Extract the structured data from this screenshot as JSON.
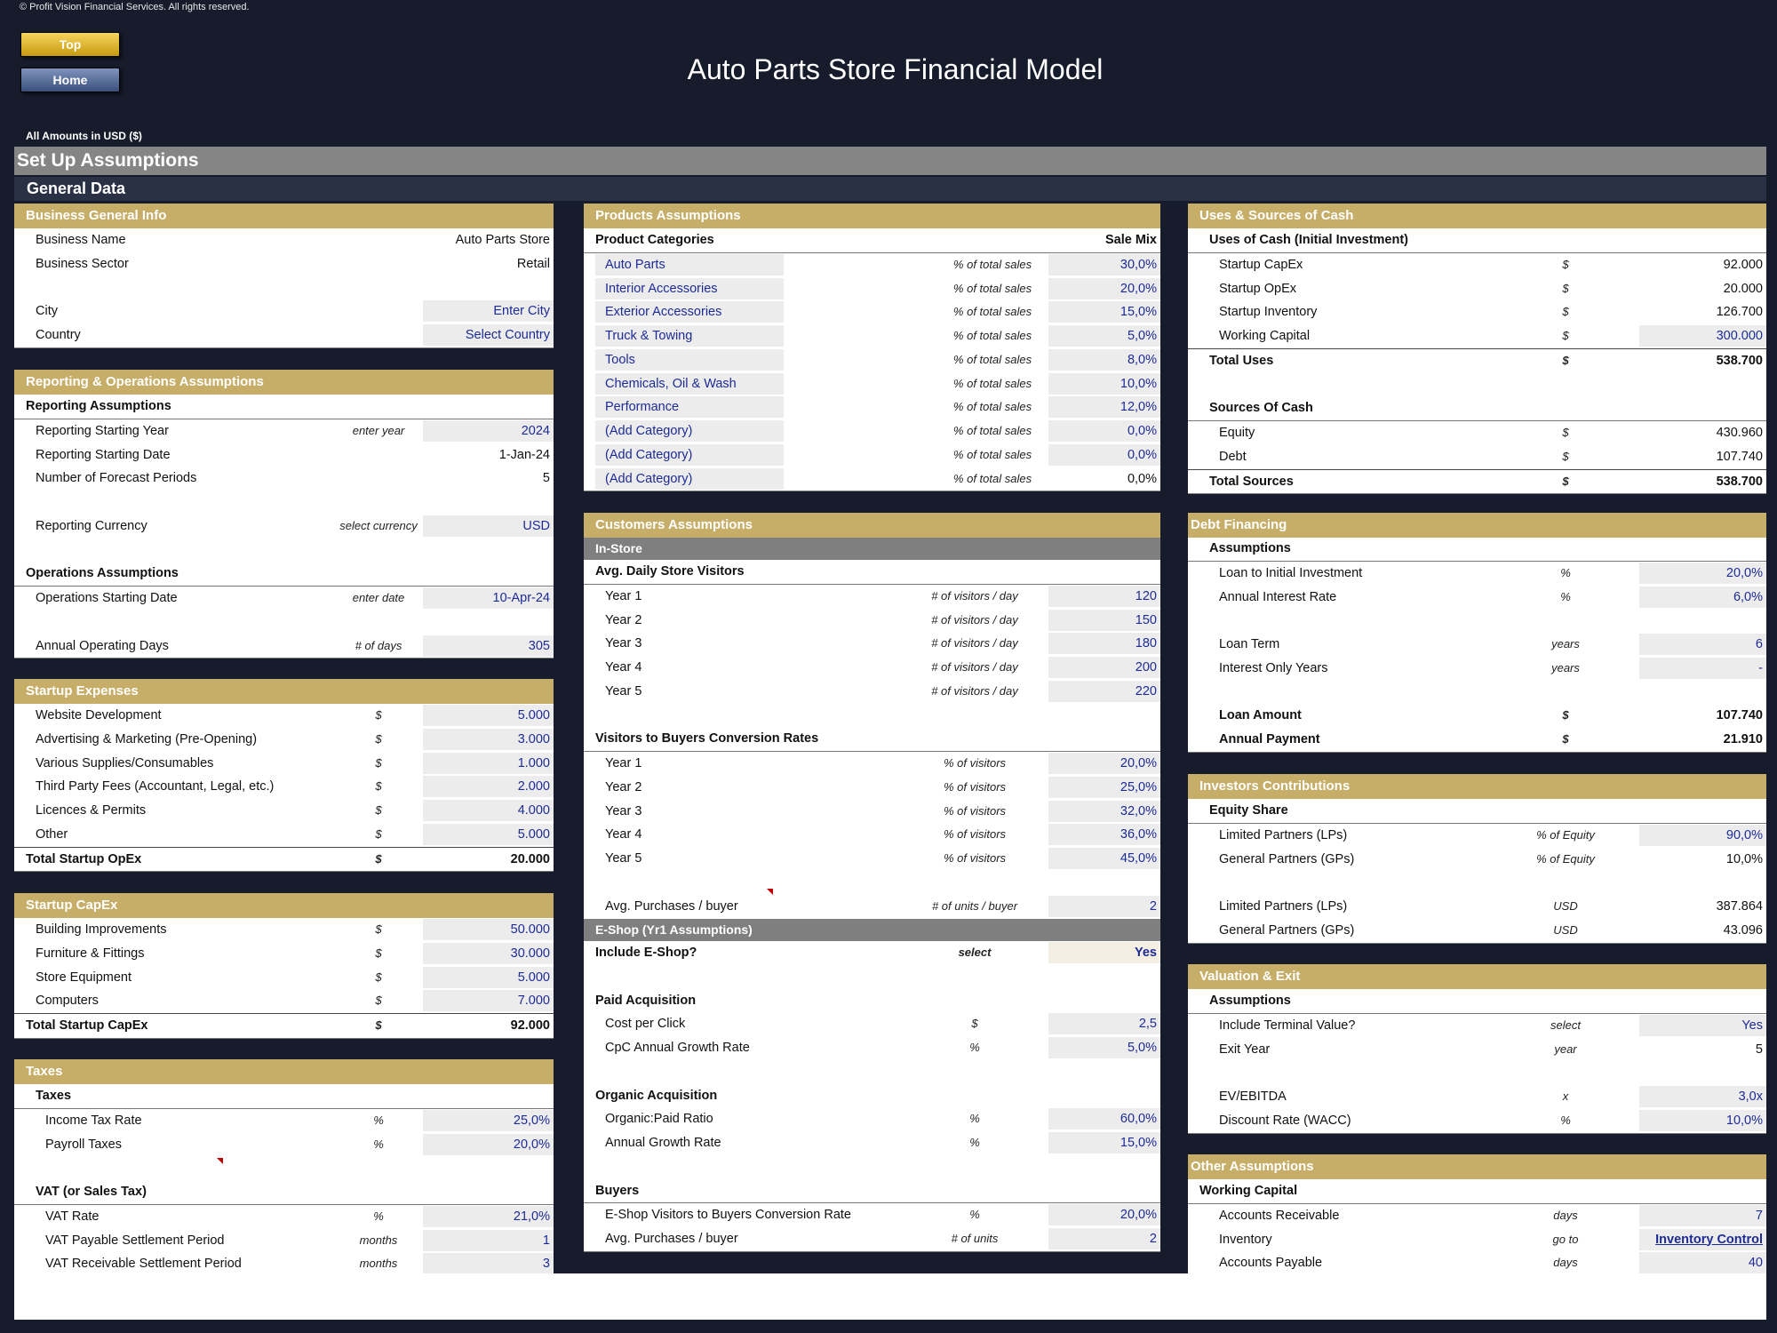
{
  "copyright": "© Profit Vision Financial Services. All rights reserved.",
  "nav": {
    "top": "Top",
    "home": "Home"
  },
  "title": "Auto Parts Store Financial Model",
  "amounts_note": "All Amounts in  USD ($)",
  "section": "Set Up Assumptions",
  "subsection": "General Data",
  "business": {
    "header": "Business General Info",
    "rows": [
      {
        "label": "Business Name",
        "value": "Auto Parts Store"
      },
      {
        "label": "Business Sector",
        "value": "Retail"
      },
      {
        "label": "City",
        "value": "Enter City"
      },
      {
        "label": "Country",
        "value": "Select Country"
      }
    ]
  },
  "reporting": {
    "header": "Reporting & Operations Assumptions",
    "sub1": "Reporting Assumptions",
    "rows1": [
      {
        "label": "Reporting Starting Year",
        "unit": "enter year",
        "value": "2024"
      },
      {
        "label": "Reporting Starting Date",
        "unit": "",
        "value": "1-Jan-24"
      },
      {
        "label": "Number of Forecast Periods",
        "unit": "",
        "value": "5"
      },
      {
        "label": "Reporting Currency",
        "unit": "select currency",
        "value": "USD"
      }
    ],
    "sub2": "Operations Assumptions",
    "rows2": [
      {
        "label": "Operations Starting Date",
        "unit": "enter date",
        "value": "10-Apr-24"
      },
      {
        "label": "Annual Operating Days",
        "unit": "# of days",
        "value": "305"
      }
    ]
  },
  "startup_expenses": {
    "header": "Startup Expenses",
    "rows": [
      {
        "label": "Website Development",
        "unit": "$",
        "value": "5.000"
      },
      {
        "label": "Advertising & Marketing (Pre-Opening)",
        "unit": "$",
        "value": "3.000"
      },
      {
        "label": "Various Supplies/Consumables",
        "unit": "$",
        "value": "1.000"
      },
      {
        "label": "Third Party Fees (Accountant, Legal, etc.)",
        "unit": "$",
        "value": "2.000"
      },
      {
        "label": "Licences & Permits",
        "unit": "$",
        "value": "4.000"
      },
      {
        "label": "Other",
        "unit": "$",
        "value": "5.000"
      }
    ],
    "total": {
      "label": "Total Startup OpEx",
      "unit": "$",
      "value": "20.000"
    }
  },
  "startup_capex": {
    "header": "Startup CapEx",
    "rows": [
      {
        "label": "Building Improvements",
        "unit": "$",
        "value": "50.000"
      },
      {
        "label": "Furniture & Fittings",
        "unit": "$",
        "value": "30.000"
      },
      {
        "label": "Store Equipment",
        "unit": "$",
        "value": "5.000"
      },
      {
        "label": "Computers",
        "unit": "$",
        "value": "7.000"
      }
    ],
    "total": {
      "label": "Total Startup CapEx",
      "unit": "$",
      "value": "92.000"
    }
  },
  "taxes": {
    "header": "Taxes",
    "sub1": "Taxes",
    "rows1": [
      {
        "label": "Income Tax Rate",
        "unit": "%",
        "value": "25,0%"
      },
      {
        "label": "Payroll Taxes",
        "unit": "%",
        "value": "20,0%"
      }
    ],
    "sub2": "VAT (or Sales Tax)",
    "rows2": [
      {
        "label": "VAT Rate",
        "unit": "%",
        "value": "21,0%"
      },
      {
        "label": "VAT Payable Settlement Period",
        "unit": "months",
        "value": "1"
      },
      {
        "label": "VAT Receivable Settlement Period",
        "unit": "months",
        "value": "3"
      }
    ]
  },
  "products": {
    "header": "Products Assumptions",
    "col1": "Product Categories",
    "col2": "Sale Mix",
    "rows": [
      {
        "label": "Auto Parts",
        "unit": "% of total sales",
        "value": "30,0%"
      },
      {
        "label": "Interior Accessories",
        "unit": "% of total sales",
        "value": "20,0%"
      },
      {
        "label": "Exterior Accessories",
        "unit": "% of total sales",
        "value": "15,0%"
      },
      {
        "label": "Truck & Towing",
        "unit": "% of total sales",
        "value": "5,0%"
      },
      {
        "label": "Tools",
        "unit": "% of total sales",
        "value": "8,0%"
      },
      {
        "label": "Chemicals, Oil & Wash",
        "unit": "% of total sales",
        "value": "10,0%"
      },
      {
        "label": "Performance",
        "unit": "% of total sales",
        "value": "12,0%"
      },
      {
        "label": "(Add Category)",
        "unit": "% of total sales",
        "value": "0,0%"
      },
      {
        "label": "(Add Category)",
        "unit": "% of total sales",
        "value": "0,0%"
      },
      {
        "label": "(Add Category)",
        "unit": "% of total sales",
        "value": "0,0%"
      }
    ]
  },
  "customers": {
    "header": "Customers Assumptions",
    "instore": "In-Store",
    "visitors_head": "Avg. Daily Store Visitors",
    "visitors": [
      {
        "label": "Year 1",
        "unit": "# of visitors / day",
        "value": "120"
      },
      {
        "label": "Year 2",
        "unit": "# of visitors / day",
        "value": "150"
      },
      {
        "label": "Year 3",
        "unit": "# of visitors / day",
        "value": "180"
      },
      {
        "label": "Year 4",
        "unit": "# of visitors / day",
        "value": "200"
      },
      {
        "label": "Year 5",
        "unit": "# of visitors / day",
        "value": "220"
      }
    ],
    "conv_head": "Visitors to Buyers Conversion Rates",
    "conv": [
      {
        "label": "Year 1",
        "unit": "% of visitors",
        "value": "20,0%"
      },
      {
        "label": "Year 2",
        "unit": "% of visitors",
        "value": "25,0%"
      },
      {
        "label": "Year 3",
        "unit": "% of visitors",
        "value": "32,0%"
      },
      {
        "label": "Year 4",
        "unit": "% of visitors",
        "value": "36,0%"
      },
      {
        "label": "Year 5",
        "unit": "% of visitors",
        "value": "45,0%"
      }
    ],
    "purchases": {
      "label": "Avg. Purchases / buyer",
      "unit": "# of units / buyer",
      "value": "2"
    },
    "eshop": "E-Shop (Yr1 Assumptions)",
    "include": {
      "label": "Include E-Shop?",
      "unit": "select",
      "value": "Yes"
    },
    "paid_head": "Paid Acquisition",
    "paid": [
      {
        "label": "Cost per Click",
        "unit": "$",
        "value": "2,5"
      },
      {
        "label": "CpC Annual Growth Rate",
        "unit": "%",
        "value": "5,0%"
      }
    ],
    "organic_head": "Organic Acquisition",
    "organic": [
      {
        "label": "Organic:Paid Ratio",
        "unit": "%",
        "value": "60,0%"
      },
      {
        "label": "Annual Growth Rate",
        "unit": "%",
        "value": "15,0%"
      }
    ],
    "buyers_head": "Buyers",
    "buyers": [
      {
        "label": "E-Shop Visitors to Buyers Conversion Rate",
        "unit": "%",
        "value": "20,0%"
      },
      {
        "label": "Avg. Purchases / buyer",
        "unit": "# of units",
        "value": "2"
      }
    ]
  },
  "uses": {
    "header": "Uses & Sources of Cash",
    "uses_head": "Uses of Cash (Initial Investment)",
    "uses_rows": [
      {
        "label": "Startup CapEx",
        "unit": "$",
        "value": "92.000"
      },
      {
        "label": "Startup OpEx",
        "unit": "$",
        "value": "20.000"
      },
      {
        "label": "Startup Inventory",
        "unit": "$",
        "value": "126.700"
      },
      {
        "label": "Working Capital",
        "unit": "$",
        "value": "300.000"
      }
    ],
    "uses_total": {
      "label": "Total Uses",
      "unit": "$",
      "value": "538.700"
    },
    "sources_head": "Sources Of Cash",
    "sources_rows": [
      {
        "label": "Equity",
        "unit": "$",
        "value": "430.960"
      },
      {
        "label": "Debt",
        "unit": "$",
        "value": "107.740"
      }
    ],
    "sources_total": {
      "label": "Total Sources",
      "unit": "$",
      "value": "538.700"
    }
  },
  "debt": {
    "header": "Debt Financing",
    "sub": "Assumptions",
    "rows1": [
      {
        "label": "Loan to Initial Investment",
        "unit": "%",
        "value": "20,0%"
      },
      {
        "label": "Annual Interest Rate",
        "unit": "%",
        "value": "6,0%"
      }
    ],
    "rows2": [
      {
        "label": "Loan Term",
        "unit": "years",
        "value": "6"
      },
      {
        "label": "Interest Only Years",
        "unit": "years",
        "value": "-"
      }
    ],
    "rows3": [
      {
        "label": "Loan Amount",
        "unit": "$",
        "value": "107.740"
      },
      {
        "label": "Annual Payment",
        "unit": "$",
        "value": "21.910"
      }
    ]
  },
  "investors": {
    "header": "Investors Contributions",
    "sub": "Equity Share",
    "rows1": [
      {
        "label": "Limited Partners (LPs)",
        "unit": "% of Equity",
        "value": "90,0%"
      },
      {
        "label": "General Partners (GPs)",
        "unit": "% of Equity",
        "value": "10,0%"
      }
    ],
    "rows2": [
      {
        "label": "Limited Partners (LPs)",
        "unit": "USD",
        "value": "387.864"
      },
      {
        "label": "General Partners (GPs)",
        "unit": "USD",
        "value": "43.096"
      }
    ]
  },
  "valuation": {
    "header": "Valuation & Exit",
    "sub": "Assumptions",
    "rows1": [
      {
        "label": "Include Terminal Value?",
        "unit": "select",
        "value": "Yes"
      },
      {
        "label": "Exit Year",
        "unit": "year",
        "value": "5"
      }
    ],
    "rows2": [
      {
        "label": "EV/EBITDA",
        "unit": "x",
        "value": "3,0x"
      },
      {
        "label": "Discount Rate (WACC)",
        "unit": "%",
        "value": "10,0%"
      }
    ]
  },
  "other": {
    "header": "Other Assumptions",
    "sub": "Working Capital",
    "rows": [
      {
        "label": "Accounts Receivable",
        "unit": "days",
        "value": "7"
      },
      {
        "label": "Inventory",
        "unit": "go to",
        "value": "Inventory Control"
      },
      {
        "label": "Accounts Payable",
        "unit": "days",
        "value": "40"
      }
    ]
  }
}
